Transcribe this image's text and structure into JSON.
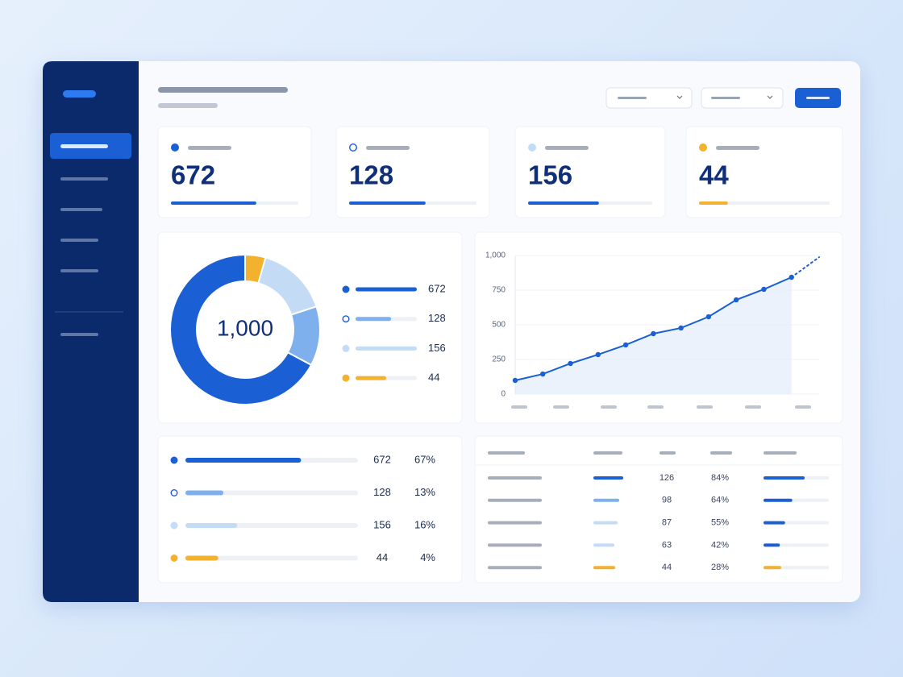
{
  "kpis": [
    672,
    128,
    156,
    44
  ],
  "chart_data": [
    {
      "type": "pie",
      "center_label": "1,000",
      "values": [
        672,
        128,
        156,
        44
      ],
      "colors": [
        "#1a5fd4",
        "#7fb0ee",
        "#c4dbf6",
        "#f2b12f"
      ]
    },
    {
      "type": "line",
      "categories": [
        null,
        null,
        null,
        null,
        null,
        null,
        null,
        null,
        null,
        null,
        null,
        null
      ],
      "series": [
        {
          "color": "#1a5fd4",
          "values": [
            99,
            145,
            221,
            285,
            355,
            436,
            477,
            558,
            680,
            756,
            843,
            null
          ]
        },
        {
          "color": "#1a5fd4",
          "dashed": true,
          "values": [
            null,
            null,
            null,
            null,
            null,
            null,
            null,
            null,
            null,
            null,
            843,
            988
          ]
        }
      ],
      "ylim": [
        0,
        1000
      ],
      "yticks": [
        0,
        250,
        500,
        750,
        {
          "value": 1000,
          "label": "1,000"
        }
      ],
      "grid": true
    }
  ],
  "breakdown": {
    "values": [
      672,
      128,
      156,
      44
    ],
    "shares": [
      "67%",
      "13%",
      "16%",
      "4%"
    ]
  },
  "table": {
    "rows": [
      [
        126,
        "84%"
      ],
      [
        98,
        "64%"
      ],
      [
        87,
        "55%"
      ],
      [
        63,
        "42%"
      ],
      [
        44,
        "28%"
      ]
    ]
  }
}
